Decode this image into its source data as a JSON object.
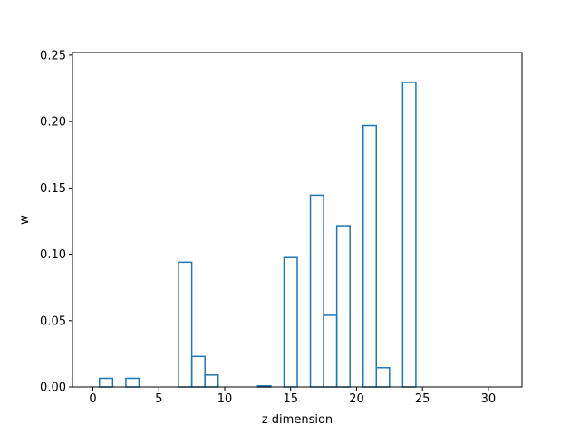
{
  "chart_data": {
    "type": "histogram",
    "title": "",
    "xlabel": "z dimension",
    "ylabel": "w",
    "xlim": [
      -1.55,
      32.55
    ],
    "ylim": [
      0,
      0.252
    ],
    "grid": false,
    "legend": "none",
    "style": "step",
    "line_color": "#1f77b4",
    "x_ticks": [
      0,
      5,
      10,
      15,
      20,
      25,
      30
    ],
    "x_tick_labels": [
      "0",
      "5",
      "10",
      "15",
      "20",
      "25",
      "30"
    ],
    "y_ticks": [
      0,
      0.05,
      0.1,
      0.15,
      0.2,
      0.25
    ],
    "y_tick_labels": [
      "0.00",
      "0.05",
      "0.10",
      "0.15",
      "0.20",
      "0.25"
    ],
    "bin_edges": [
      0,
      0.5,
      1.5,
      2.5,
      3.5,
      4.5,
      5.5,
      6.5,
      7.5,
      8.5,
      9.5,
      10.5,
      11.5,
      12.5,
      13.5,
      14.5,
      15.5,
      16.5,
      17.5,
      18.5,
      19.5,
      20.5,
      21.5,
      22.5,
      23.5,
      24.5,
      25.5,
      26.5,
      27.5,
      28.5,
      29.5,
      30.5,
      31
    ],
    "values": [
      0,
      0.0065,
      0,
      0.0065,
      0,
      0,
      0,
      0.094,
      0.023,
      0.009,
      0,
      0,
      0,
      0.0008,
      0,
      0.0975,
      0,
      0.1445,
      0.054,
      0.1215,
      0,
      0.197,
      0.0145,
      0,
      0.2295,
      0,
      0,
      0,
      0,
      0,
      0,
      0
    ]
  }
}
